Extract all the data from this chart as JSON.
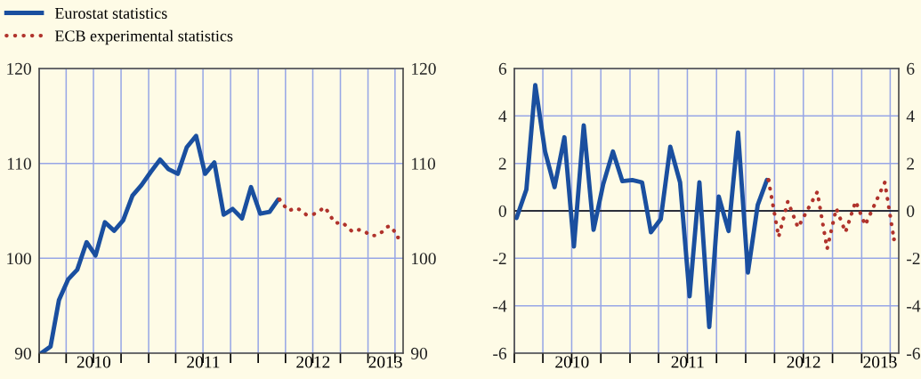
{
  "chart_data": [
    {
      "type": "line",
      "legend": "top left",
      "grid": true,
      "xlim": [
        "2010-01-01",
        "2013-04-28"
      ],
      "xticks": [
        {
          "value": "2010-01-01",
          "label": null
        },
        {
          "value": "2010-04-01",
          "label": null
        },
        {
          "value": "2010-07-01",
          "label": null
        },
        {
          "value": "2010-10-01",
          "label": null
        },
        {
          "value": "2011-01-01",
          "label": null
        },
        {
          "value": "2011-04-01",
          "label": null
        },
        {
          "value": "2011-07-01",
          "label": null
        },
        {
          "value": "2011-10-01",
          "label": null
        },
        {
          "value": "2012-01-01",
          "label": null
        },
        {
          "value": "2012-04-01",
          "label": null
        },
        {
          "value": "2012-07-01",
          "label": null
        },
        {
          "value": "2012-10-01",
          "label": null
        },
        {
          "value": "2013-01-01",
          "label": null
        },
        {
          "value": "2013-04-01",
          "label": null
        },
        {
          "value": "2010-07-02",
          "label": "2010"
        },
        {
          "value": "2011-07-02",
          "label": "2011"
        },
        {
          "value": "2012-07-02",
          "label": "2012"
        },
        {
          "value": "2013-02-28",
          "label": "2013"
        }
      ],
      "ylim": [
        90,
        120
      ],
      "yticks": [
        90,
        100,
        110,
        120
      ],
      "y2lim": [
        90,
        120
      ],
      "y2ticks": [
        90,
        100,
        110,
        120
      ],
      "series": [
        {
          "name": "Eurostat statistics",
          "color": "#1a4f9f",
          "line_style": "solid",
          "x": [
            "2010-01-08",
            "2010-02-08",
            "2010-03-08",
            "2010-04-08",
            "2010-05-08",
            "2010-06-08",
            "2010-07-08",
            "2010-08-08",
            "2010-09-08",
            "2010-10-08",
            "2010-11-08",
            "2010-12-08",
            "2011-01-08",
            "2011-02-08",
            "2011-03-08",
            "2011-04-08",
            "2011-05-08",
            "2011-06-08",
            "2011-07-08",
            "2011-08-08",
            "2011-09-08",
            "2011-10-08",
            "2011-11-08",
            "2011-12-08",
            "2012-01-08",
            "2012-02-08",
            "2012-03-08"
          ],
          "values": [
            90.0,
            90.7,
            95.6,
            97.8,
            98.8,
            101.7,
            100.3,
            103.8,
            102.9,
            104.0,
            106.6,
            107.7,
            109.1,
            110.4,
            109.4,
            108.9,
            111.7,
            112.9,
            108.9,
            110.1,
            104.6,
            105.2,
            104.2,
            107.5,
            104.7,
            104.9,
            106.2
          ]
        },
        {
          "name": "ECB experimental statistics",
          "color": "#b0332c",
          "line_style": "dotted",
          "x": [
            "2012-03-12",
            "2012-03-26",
            "2012-04-12",
            "2012-05-03",
            "2012-05-21",
            "2012-06-09",
            "2012-06-30",
            "2012-07-21",
            "2012-08-08",
            "2012-08-21",
            "2012-09-01",
            "2012-09-14",
            "2012-10-07",
            "2012-10-24",
            "2012-11-10",
            "2012-12-01",
            "2012-12-19",
            "2013-01-08",
            "2013-01-30",
            "2013-02-18",
            "2013-03-03",
            "2013-03-17",
            "2013-03-31",
            "2013-04-11"
          ],
          "values": [
            106.2,
            105.6,
            105.0,
            105.3,
            105.1,
            104.6,
            104.6,
            104.9,
            105.4,
            104.9,
            104.3,
            103.7,
            103.8,
            103.3,
            102.8,
            103.0,
            102.9,
            102.4,
            102.4,
            102.8,
            103.3,
            103.4,
            102.8,
            102.2
          ]
        }
      ]
    },
    {
      "type": "line",
      "grid": true,
      "xlim": [
        "2010-01-01",
        "2013-04-28"
      ],
      "xticks": [
        {
          "value": "2010-01-01",
          "label": null
        },
        {
          "value": "2010-04-01",
          "label": null
        },
        {
          "value": "2010-07-01",
          "label": null
        },
        {
          "value": "2010-10-01",
          "label": null
        },
        {
          "value": "2011-01-01",
          "label": null
        },
        {
          "value": "2011-04-01",
          "label": null
        },
        {
          "value": "2011-07-01",
          "label": null
        },
        {
          "value": "2011-10-01",
          "label": null
        },
        {
          "value": "2012-01-01",
          "label": null
        },
        {
          "value": "2012-04-01",
          "label": null
        },
        {
          "value": "2012-07-01",
          "label": null
        },
        {
          "value": "2012-10-01",
          "label": null
        },
        {
          "value": "2013-01-01",
          "label": null
        },
        {
          "value": "2013-04-01",
          "label": null
        },
        {
          "value": "2010-07-02",
          "label": "2010"
        },
        {
          "value": "2011-07-02",
          "label": "2011"
        },
        {
          "value": "2012-07-02",
          "label": "2012"
        },
        {
          "value": "2013-02-28",
          "label": "2013"
        }
      ],
      "ylim": [
        -6,
        6
      ],
      "yticks": [
        -6,
        -4,
        -2,
        0,
        2,
        4,
        6
      ],
      "y2lim": [
        -6,
        6
      ],
      "y2ticks": [
        -6,
        -4,
        -2,
        0,
        2,
        4,
        6
      ],
      "ref_lines": [
        {
          "axis": "y",
          "value": 0,
          "color": "#000000",
          "line_style": "solid"
        }
      ],
      "series": [
        {
          "color": "#1a4f9f",
          "line_style": "solid",
          "x": [
            "2010-01-08",
            "2010-02-08",
            "2010-03-08",
            "2010-04-08",
            "2010-05-08",
            "2010-06-08",
            "2010-07-08",
            "2010-08-08",
            "2010-09-08",
            "2010-10-08",
            "2010-11-08",
            "2010-12-08",
            "2011-01-08",
            "2011-02-08",
            "2011-03-08",
            "2011-04-08",
            "2011-05-08",
            "2011-06-08",
            "2011-07-08",
            "2011-08-08",
            "2011-09-08",
            "2011-10-08",
            "2011-11-08",
            "2011-12-08",
            "2012-01-08",
            "2012-02-08",
            "2012-03-08"
          ],
          "values": [
            -0.3,
            0.9,
            5.3,
            2.5,
            1.0,
            3.1,
            -1.5,
            3.6,
            -0.8,
            1.1,
            2.5,
            1.25,
            1.3,
            1.2,
            -0.9,
            -0.35,
            2.7,
            1.2,
            -3.6,
            1.2,
            -4.9,
            0.6,
            -0.85,
            3.3,
            -2.6,
            0.25,
            1.3
          ]
        },
        {
          "color": "#b0332c",
          "line_style": "dotted",
          "x": [
            "2012-03-13",
            "2012-04-14",
            "2012-05-13",
            "2012-06-14",
            "2012-08-14",
            "2012-09-14",
            "2012-10-13",
            "2012-11-11",
            "2012-12-13",
            "2013-01-12",
            "2013-03-15",
            "2013-04-13"
          ],
          "values": [
            1.3,
            -1.1,
            0.4,
            -0.7,
            0.8,
            -1.6,
            0.1,
            -0.9,
            0.4,
            -0.6,
            1.2,
            -1.2
          ]
        }
      ]
    }
  ]
}
